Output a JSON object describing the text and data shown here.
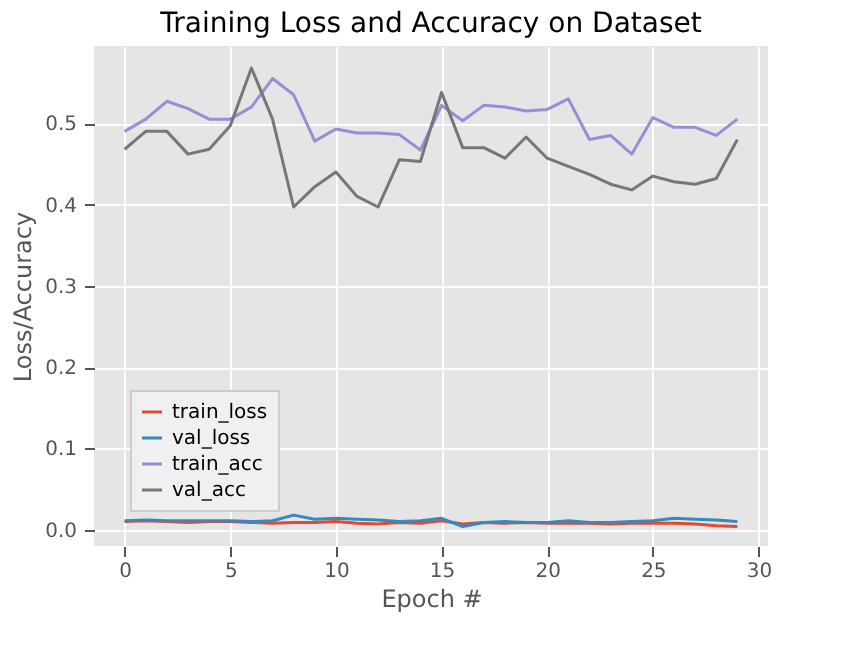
{
  "chart_data": {
    "type": "line",
    "title": "Training Loss and Accuracy on Dataset",
    "xlabel": "Epoch #",
    "ylabel": "Loss/Accuracy",
    "x": [
      0,
      1,
      2,
      3,
      4,
      5,
      6,
      7,
      8,
      9,
      10,
      11,
      12,
      13,
      14,
      15,
      16,
      17,
      18,
      19,
      20,
      21,
      22,
      23,
      24,
      25,
      26,
      27,
      28,
      29
    ],
    "series": [
      {
        "name": "train_loss",
        "color": "#e24a33",
        "values": [
          0.01,
          0.011,
          0.01,
          0.009,
          0.01,
          0.01,
          0.009,
          0.008,
          0.009,
          0.009,
          0.01,
          0.008,
          0.007,
          0.009,
          0.008,
          0.011,
          0.007,
          0.009,
          0.008,
          0.009,
          0.008,
          0.008,
          0.008,
          0.007,
          0.008,
          0.008,
          0.008,
          0.007,
          0.005,
          0.004
        ]
      },
      {
        "name": "val_loss",
        "color": "#348abd",
        "values": [
          0.011,
          0.012,
          0.011,
          0.011,
          0.011,
          0.011,
          0.01,
          0.011,
          0.018,
          0.013,
          0.014,
          0.013,
          0.012,
          0.01,
          0.011,
          0.014,
          0.004,
          0.009,
          0.01,
          0.009,
          0.009,
          0.011,
          0.009,
          0.009,
          0.01,
          0.011,
          0.014,
          0.013,
          0.012,
          0.01
        ]
      },
      {
        "name": "train_acc",
        "color": "#988ed5",
        "values": [
          0.49,
          0.505,
          0.527,
          0.518,
          0.505,
          0.505,
          0.52,
          0.555,
          0.535,
          0.478,
          0.493,
          0.488,
          0.488,
          0.486,
          0.467,
          0.522,
          0.503,
          0.522,
          0.52,
          0.515,
          0.517,
          0.53,
          0.48,
          0.485,
          0.462,
          0.507,
          0.495,
          0.495,
          0.485,
          0.505
        ]
      },
      {
        "name": "val_acc",
        "color": "#777777",
        "values": [
          0.468,
          0.49,
          0.49,
          0.462,
          0.468,
          0.497,
          0.568,
          0.505,
          0.397,
          0.422,
          0.44,
          0.41,
          0.397,
          0.455,
          0.453,
          0.538,
          0.47,
          0.47,
          0.457,
          0.483,
          0.457,
          0.447,
          0.437,
          0.425,
          0.418,
          0.435,
          0.428,
          0.425,
          0.432,
          0.48
        ]
      }
    ],
    "xlim": [
      -1.45,
      30.45
    ],
    "xticks": [
      0,
      5,
      10,
      15,
      20,
      25,
      30
    ],
    "ylim": [
      -0.02,
      0.595
    ],
    "yticks": [
      {
        "value": 0,
        "label": "0.0"
      },
      0.1,
      0.2,
      0.3,
      0.4,
      0.5
    ],
    "grid": true,
    "legend": "bottom left",
    "line_style": "solid",
    "marker": "none"
  }
}
